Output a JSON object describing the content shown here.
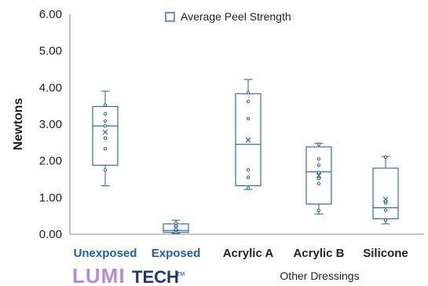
{
  "chart_data": {
    "type": "box",
    "title": "",
    "ylabel": "Newtons",
    "ylim": [
      0,
      6
    ],
    "yticks": [
      "0.00",
      "1.00",
      "2.00",
      "3.00",
      "4.00",
      "5.00",
      "6.00"
    ],
    "ytick_values": [
      0,
      1,
      2,
      3,
      4,
      5,
      6
    ],
    "legend": {
      "label": "Average Peel Strength",
      "placement": "top-center"
    },
    "categories": [
      "Unexposed",
      "Exposed",
      "Acrylic A",
      "Acrylic B",
      "Silicone"
    ],
    "category_colors": [
      "#1f5fa8",
      "#1f5fa8",
      "#222222",
      "#222222",
      "#222222"
    ],
    "group_label": "Other Dressings",
    "series": [
      {
        "category": "Unexposed",
        "min": 1.32,
        "q1": 1.88,
        "median": 2.95,
        "q3": 3.48,
        "max": 3.9,
        "mean": 2.78,
        "points": [
          1.75,
          2.33,
          2.62,
          2.95,
          3.08,
          3.28,
          3.52
        ]
      },
      {
        "category": "Exposed",
        "min": 0.02,
        "q1": 0.05,
        "median": 0.1,
        "q3": 0.28,
        "max": 0.38,
        "mean": 0.17,
        "points": [
          0.05,
          0.1,
          0.14,
          0.22,
          0.3
        ]
      },
      {
        "category": "Acrylic A",
        "min": 1.22,
        "q1": 1.32,
        "median": 2.45,
        "q3": 3.83,
        "max": 4.22,
        "mean": 2.57,
        "points": [
          1.25,
          1.55,
          1.75,
          3.15,
          3.62,
          3.85
        ]
      },
      {
        "category": "Acrylic B",
        "min": 0.55,
        "q1": 0.82,
        "median": 1.7,
        "q3": 2.38,
        "max": 2.48,
        "mean": 1.6,
        "points": [
          0.65,
          1.38,
          1.52,
          1.68,
          1.88,
          2.05,
          2.45
        ]
      },
      {
        "category": "Silicone",
        "min": 0.28,
        "q1": 0.42,
        "median": 0.72,
        "q3": 1.8,
        "max": 2.12,
        "mean": 0.95,
        "points": [
          0.38,
          0.65,
          0.85,
          0.9,
          2.1
        ]
      }
    ],
    "colors": {
      "box": "#1f5fa8",
      "axis": "#888888"
    },
    "grid": false
  },
  "logo": {
    "part1": "LUMI",
    "part2": "TECH",
    "tm": "TM"
  }
}
